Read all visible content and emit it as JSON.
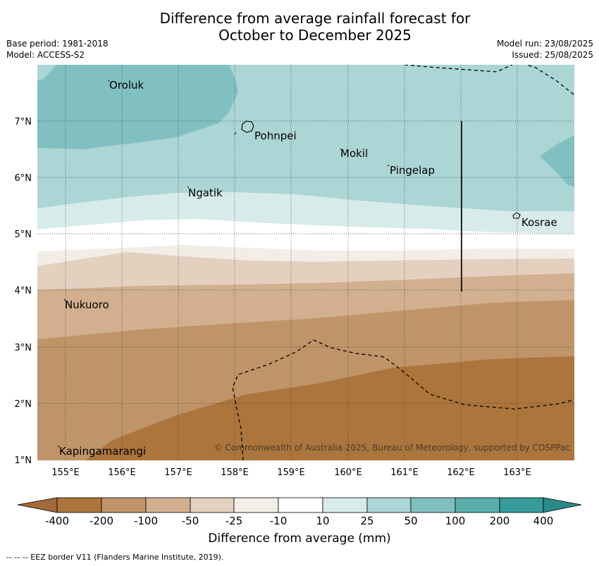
{
  "title_line1": "Difference from average rainfall forecast for",
  "title_line2": "October to December 2025",
  "base_period": "Base period: 1981-2018",
  "model": "Model: ACCESS-S2",
  "model_run": "Model run: 23/08/2025",
  "issued": "Issued: 25/08/2025",
  "copyright": "© Commonwealth of Australia 2025, Bureau of Meteorology, supported by COSPPac",
  "colorbar_title": "Difference from average (mm)",
  "footer": "--  --  -- EEZ border V11 (Flanders Marine Institute, 2019).",
  "axes": {
    "lon_ticks": [
      "155°E",
      "156°E",
      "157°E",
      "158°E",
      "159°E",
      "160°E",
      "161°E",
      "162°E",
      "163°E"
    ],
    "lat_ticks": [
      "1°N",
      "2°N",
      "3°N",
      "4°N",
      "5°N",
      "6°N",
      "7°N"
    ]
  },
  "places": [
    {
      "name": "Oroluk",
      "lon": 155.8,
      "lat": 7.65
    },
    {
      "name": "Pohnpei",
      "lon": 158.3,
      "lat": 6.88
    },
    {
      "name": "Mokil",
      "lon": 159.8,
      "lat": 6.68
    },
    {
      "name": "Pingelap",
      "lon": 160.7,
      "lat": 6.2
    },
    {
      "name": "Ngatik",
      "lon": 157.1,
      "lat": 5.8
    },
    {
      "name": "Kosrae",
      "lon": 163.0,
      "lat": 5.3
    },
    {
      "name": "Nukuoro",
      "lon": 154.97,
      "lat": 3.85
    },
    {
      "name": "Kapingamarangi",
      "lon": 154.85,
      "lat": 1.08
    }
  ],
  "colorbar": {
    "labels": [
      "-400",
      "-200",
      "-100",
      "-50",
      "-25",
      "-10",
      "10",
      "25",
      "50",
      "100",
      "200",
      "400"
    ],
    "colors": [
      "#a2693a",
      "#ac753c",
      "#c09469",
      "#d2b08f",
      "#e4d0bf",
      "#f2ede6",
      "#ffffff",
      "#d8ebeb",
      "#acd5d5",
      "#81c0c0",
      "#59aeab",
      "#379b99",
      "#2a8a88"
    ]
  },
  "colors": {
    "deep_teal": "#81c0c0",
    "light_teal": "#acd5d5",
    "pale_teal": "#d8ebeb",
    "cream": "#f2ede6",
    "pale_tan": "#e4d0bf",
    "tan": "#d2b08f",
    "brown": "#c09469",
    "dark_brown": "#ac753c"
  }
}
